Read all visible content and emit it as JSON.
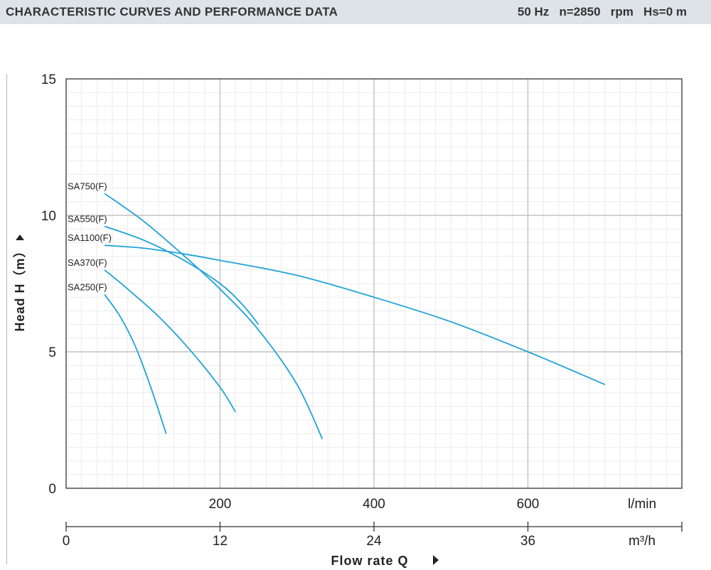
{
  "header": {
    "title": "CHARACTERISTIC CURVES AND PERFORMANCE DATA",
    "conditions": "50 Hz   n=2850   rpm   Hs=0 m"
  },
  "chart_data": {
    "type": "line",
    "xlabel": "Flow rate Q",
    "ylabel": "Head H（m）",
    "x_unit_primary": "l/min",
    "x_unit_secondary": "m³/h",
    "xlim": [
      0,
      800
    ],
    "ylim": [
      0,
      15
    ],
    "x_ticks": [
      200,
      400,
      600
    ],
    "y_ticks": [
      0,
      5,
      10,
      15
    ],
    "x2_ticks": [
      0,
      12,
      24,
      36
    ],
    "grid": true,
    "series": [
      {
        "name": "SA750(F)",
        "color": "#1fa3d8",
        "x": [
          50,
          100,
          150,
          200,
          250,
          300,
          333
        ],
        "y": [
          10.8,
          9.8,
          8.6,
          7.3,
          5.8,
          3.8,
          1.8
        ]
      },
      {
        "name": "SA550(F)",
        "color": "#1fa3d8",
        "x": [
          50,
          100,
          150,
          200,
          230,
          250
        ],
        "y": [
          9.6,
          9.1,
          8.4,
          7.5,
          6.7,
          6.0
        ]
      },
      {
        "name": "SA1100(F)",
        "color": "#1fa3d8",
        "x": [
          50,
          100,
          150,
          200,
          300,
          400,
          500,
          600,
          700
        ],
        "y": [
          8.9,
          8.8,
          8.6,
          8.35,
          7.8,
          7.0,
          6.1,
          5.0,
          3.8
        ]
      },
      {
        "name": "SA370(F)",
        "color": "#1fa3d8",
        "x": [
          50,
          80,
          120,
          160,
          200,
          220
        ],
        "y": [
          8.0,
          7.3,
          6.3,
          5.1,
          3.7,
          2.8
        ]
      },
      {
        "name": "SA250(F)",
        "color": "#1fa3d8",
        "x": [
          50,
          70,
          90,
          110,
          130
        ],
        "y": [
          7.1,
          6.3,
          5.2,
          3.7,
          2.0
        ]
      }
    ]
  }
}
